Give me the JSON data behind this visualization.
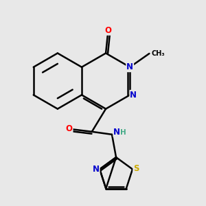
{
  "bg_color": "#e8e8e8",
  "bond_color": "#000000",
  "bond_width": 1.8,
  "atom_colors": {
    "O": "#ff0000",
    "N": "#0000cc",
    "S": "#ccaa00",
    "C": "#000000",
    "H": "#44aa88"
  },
  "font_size": 8.5
}
